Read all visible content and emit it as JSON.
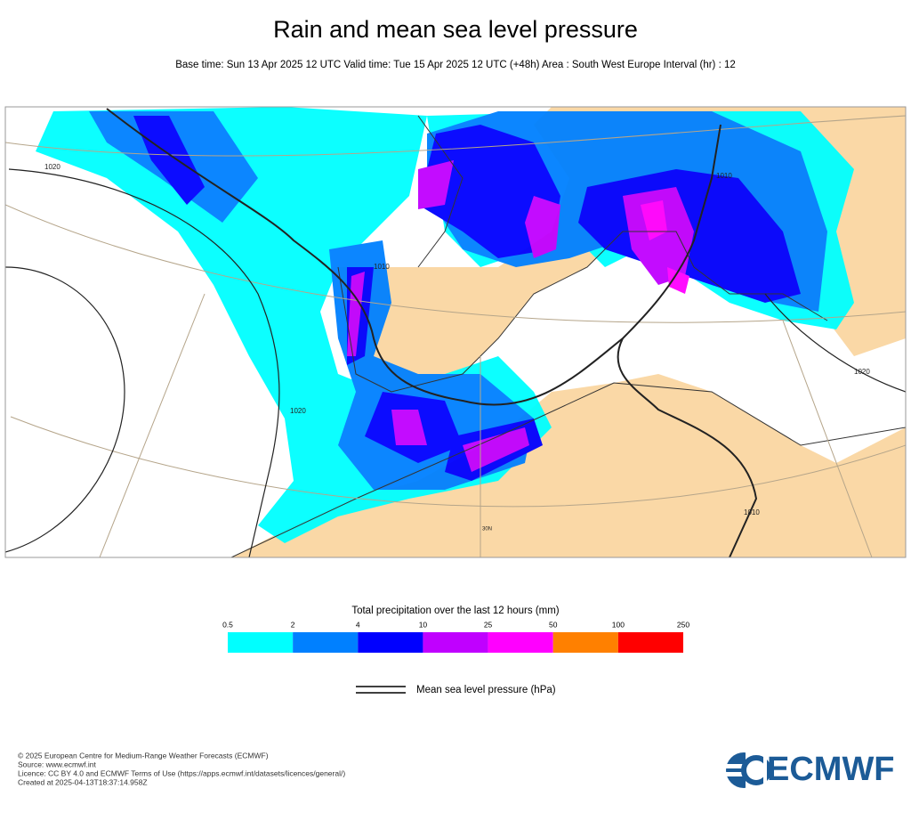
{
  "header": {
    "title": "Rain and mean sea level pressure",
    "subtitle": "Base time: Sun 13 Apr 2025 12 UTC Valid time: Tue 15 Apr 2025 12 UTC (+48h) Area : South West Europe Interval (hr) : 12"
  },
  "map": {
    "contour_labels": [
      "1020",
      "1010",
      "1020",
      "1010",
      "1020",
      "1010"
    ],
    "latitude_label": "30N"
  },
  "legend": {
    "title": "Total precipitation over the last 12 hours (mm)",
    "levels": [
      0.5,
      2,
      4,
      10,
      25,
      50,
      100,
      250
    ],
    "colors": [
      "#00ffff",
      "#0080ff",
      "#0000ff",
      "#c000ff",
      "#ff00ff",
      "#ff8000",
      "#ff0000"
    ],
    "pressure_label": "Mean sea level pressure (hPa)"
  },
  "footer": {
    "lines": [
      "© 2025 European Centre for Medium-Range Weather Forecasts (ECMWF)",
      "Source: www.ecmwf.int",
      "Licence: CC BY 4.0 and ECMWF Terms of Use (https://apps.ecmwf.int/datasets/licences/general/)",
      "Created at 2025-04-13T18:37:14.958Z"
    ],
    "logo": "ECMWF"
  }
}
